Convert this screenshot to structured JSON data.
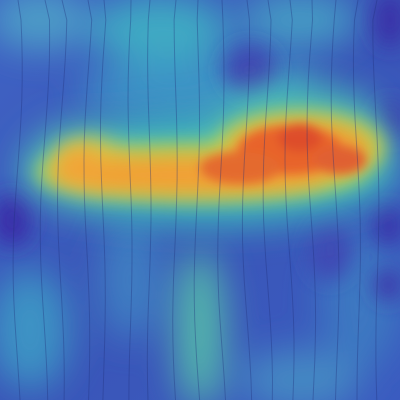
{
  "image": {
    "description_tag": "heatmap-overlay-on-striped-texture",
    "colormap": [
      "#3d2aa8",
      "#3f5fc6",
      "#2fa8c8",
      "#4fd2b0",
      "#a8d85a",
      "#f2a63a",
      "#e8622a",
      "#d9402a"
    ],
    "base_color": "#3a58bd",
    "hot_color": "#e35a2e",
    "warm_color": "#f0a035",
    "cool_color": "#45c4be"
  }
}
